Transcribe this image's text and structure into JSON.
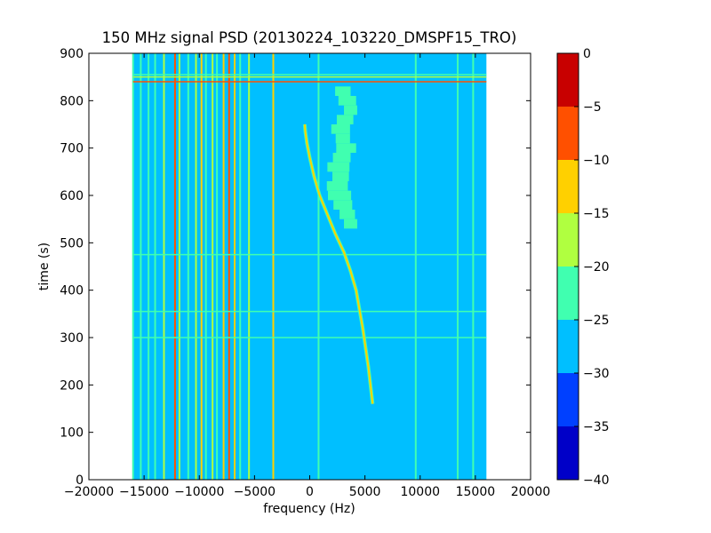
{
  "chart_data": {
    "type": "heatmap",
    "title": "150 MHz signal PSD (20130224_103220_DMSPF15_TRO)",
    "xlabel": "frequency (Hz)",
    "ylabel": "time (s)",
    "xlim": [
      -20000,
      20000
    ],
    "ylim": [
      0,
      900
    ],
    "xticks": [
      -20000,
      -15000,
      -10000,
      -5000,
      0,
      5000,
      10000,
      15000,
      20000
    ],
    "xtick_labels": [
      "−20000",
      "−15000",
      "−10000",
      "−5000",
      "0",
      "5000",
      "10000",
      "15000",
      "20000"
    ],
    "yticks": [
      0,
      100,
      200,
      300,
      400,
      500,
      600,
      700,
      800,
      900
    ],
    "ytick_labels": [
      "0",
      "100",
      "200",
      "300",
      "400",
      "500",
      "600",
      "700",
      "800",
      "900"
    ],
    "data_extent": {
      "freq_min": -16000,
      "freq_max": 16000,
      "time_min": 0,
      "time_max": 900
    },
    "background_level": -27.5,
    "colorbar": {
      "levels": [
        -40,
        -35,
        -30,
        -25,
        -20,
        -15,
        -10,
        -5,
        0
      ],
      "tick_labels": [
        "−40",
        "−35",
        "−30",
        "−25",
        "−20",
        "−15",
        "−10",
        "−5",
        "0"
      ],
      "colors": [
        "#0000c8",
        "#0040ff",
        "#00bfff",
        "#40ffb0",
        "#b0ff40",
        "#ffd000",
        "#ff5000",
        "#c80000"
      ]
    },
    "features": {
      "vertical_lines": [
        {
          "freq": -16000,
          "level": -22
        },
        {
          "freq": -15300,
          "level": -22
        },
        {
          "freq": -14600,
          "level": -22
        },
        {
          "freq": -14000,
          "level": -22
        },
        {
          "freq": -13200,
          "level": -17
        },
        {
          "freq": -12200,
          "level": -7
        },
        {
          "freq": -11800,
          "level": -17
        },
        {
          "freq": -11000,
          "level": -22
        },
        {
          "freq": -10300,
          "level": -17
        },
        {
          "freq": -9800,
          "level": -12
        },
        {
          "freq": -9400,
          "level": -22
        },
        {
          "freq": -8800,
          "level": -17
        },
        {
          "freq": -8400,
          "level": -22
        },
        {
          "freq": -7800,
          "level": -12
        },
        {
          "freq": -7300,
          "level": -7
        },
        {
          "freq": -6800,
          "level": -12
        },
        {
          "freq": -6300,
          "level": -22
        },
        {
          "freq": -5500,
          "level": -17
        },
        {
          "freq": -3300,
          "level": -12
        },
        {
          "freq": 800,
          "level": -22
        },
        {
          "freq": 9600,
          "level": -22
        },
        {
          "freq": 13400,
          "level": -22
        },
        {
          "freq": 14800,
          "level": -22
        }
      ],
      "horizontal_lines": [
        {
          "time": 840,
          "level": -7
        },
        {
          "time": 850,
          "level": -17
        },
        {
          "time": 855,
          "level": -22
        },
        {
          "time": 475,
          "level": -22
        },
        {
          "time": 355,
          "level": -22
        },
        {
          "time": 300,
          "level": -22
        }
      ],
      "doppler_track": {
        "level": -12,
        "freq": [
          5700,
          5500,
          5300,
          5050,
          4800,
          4500,
          4200,
          3700,
          3100,
          2300,
          1600,
          900,
          400,
          0,
          -250,
          -400,
          -450
        ],
        "time": [
          160,
          200,
          240,
          280,
          320,
          360,
          400,
          440,
          480,
          520,
          560,
          600,
          640,
          680,
          710,
          735,
          750
        ]
      },
      "green_cluster": {
        "level": -22,
        "time": [
          820,
          800,
          780,
          760,
          740,
          720,
          700,
          680,
          660,
          640,
          620,
          600,
          580,
          560,
          540
        ],
        "freq_center": [
          3000,
          3400,
          3700,
          3200,
          2800,
          3000,
          3300,
          2900,
          2600,
          2800,
          2500,
          2700,
          3000,
          3400,
          3700
        ],
        "freq_width": [
          1400,
          1600,
          1200,
          1500,
          1700,
          1300,
          1800,
          1600,
          2000,
          1500,
          1900,
          2100,
          1700,
          1400,
          1200
        ]
      }
    }
  }
}
